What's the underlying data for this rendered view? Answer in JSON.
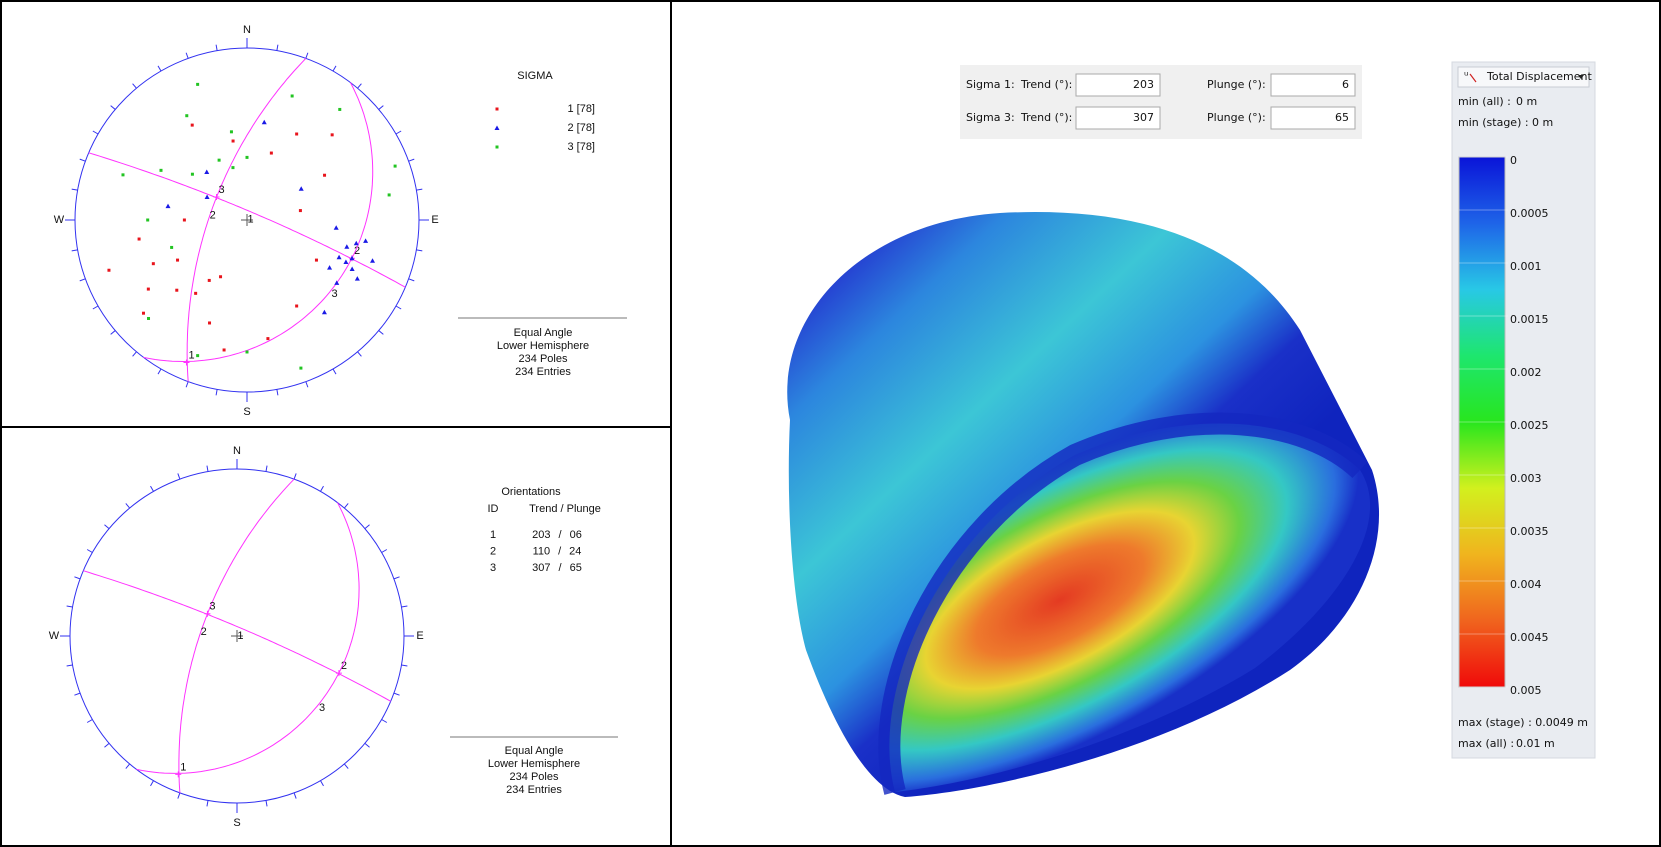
{
  "stereonet_sigma": {
    "compass": {
      "n": "N",
      "e": "E",
      "s": "S",
      "w": "W"
    },
    "legend": {
      "title": "SIGMA",
      "sets": [
        {
          "label": "1 [78]",
          "color": "#e8141c",
          "marker": "square",
          "poles": {
            "trend": [
              250,
              235,
              225,
              215,
              240,
              200,
              190,
              260,
              205,
              30,
              45,
              60,
              20,
              350,
              330,
              150,
              170,
              270,
              120,
              80,
              245,
              228,
              212
            ],
            "plunge": [
              9,
              20,
              30,
              35,
              40,
              25,
              15,
              25,
              50,
              30,
              20,
              35,
              45,
              40,
              25,
              30,
              20,
              50,
              40,
              55,
              28,
              12,
              45
            ]
          }
        },
        {
          "label": "2 [78]",
          "color": "#1a1ae6",
          "marker": "triangle",
          "poles": {
            "trend": [
              110,
              115,
              105,
              118,
              112,
              100,
              125,
              108,
              95,
              120,
              300,
              320,
              10,
              280,
              140,
              60,
              113,
              102
            ],
            "plunge": [
              24,
              22,
              28,
              18,
              30,
              20,
              25,
              15,
              35,
              32,
              60,
              50,
              30,
              40,
              20,
              50,
              26,
              24
            ]
          }
        },
        {
          "label": "3 [78]",
          "color": "#22c422",
          "marker": "square",
          "poles": {
            "trend": [
              330,
              340,
              300,
              350,
              0,
              20,
              40,
              310,
              200,
              180,
              160,
              250,
              270,
              80,
              70,
              290,
              225,
              345,
              335
            ],
            "plunge": [
              20,
              10,
              30,
              35,
              50,
              15,
              10,
              45,
              10,
              15,
              5,
              40,
              30,
              10,
              5,
              15,
              12,
              55,
              48
            ]
          }
        }
      ]
    },
    "footer": [
      "Equal Angle",
      "Lower Hemisphere",
      "234 Poles",
      "234 Entries"
    ]
  },
  "stereonet_orientations": {
    "compass": {
      "n": "N",
      "e": "E",
      "s": "S",
      "w": "W"
    },
    "table": {
      "title": "Orientations",
      "header": [
        "ID",
        "Trend / Plunge"
      ],
      "separator": "/",
      "rows": [
        {
          "id": "1",
          "trend": 203,
          "plunge": {
            "value": 6,
            "label": "06"
          }
        },
        {
          "id": "2",
          "trend": 110,
          "plunge": 24
        },
        {
          "id": "3",
          "trend": 307,
          "plunge": 65
        }
      ]
    },
    "footer": [
      "Equal Angle",
      "Lower Hemisphere",
      "234 Poles",
      "234 Entries"
    ]
  },
  "sigma_inputs": {
    "rows": [
      {
        "label": "Sigma 1:",
        "trend_label": "Trend (°):",
        "trend": 203,
        "plunge_label": "Plunge (°):",
        "plunge": 6
      },
      {
        "label": "Sigma 3:",
        "trend_label": "Trend (°):",
        "trend": 307,
        "plunge_label": "Plunge (°):",
        "plunge": 65
      }
    ]
  },
  "contour_legend": {
    "title": "Total Displacement",
    "min_all_label": "min (all) :",
    "min_all": "0 m",
    "min_stage": "min (stage) : 0 m",
    "lim": [
      0,
      0.005
    ],
    "ticks": [
      0,
      0.0005,
      0.001,
      0.0015,
      0.002,
      0.0025,
      0.003,
      0.0035,
      0.004,
      0.0045,
      0.005
    ],
    "colors": [
      "#0a14d8",
      "#1e64e8",
      "#28c8e6",
      "#1ee66e",
      "#28e61e",
      "#d2f01e",
      "#f0b41e",
      "#f0641e",
      "#f00a0a"
    ],
    "max_stage": "max (stage) : 0.0049 m",
    "max_all_label": "max (all) :",
    "max_all": "0.01 m"
  }
}
